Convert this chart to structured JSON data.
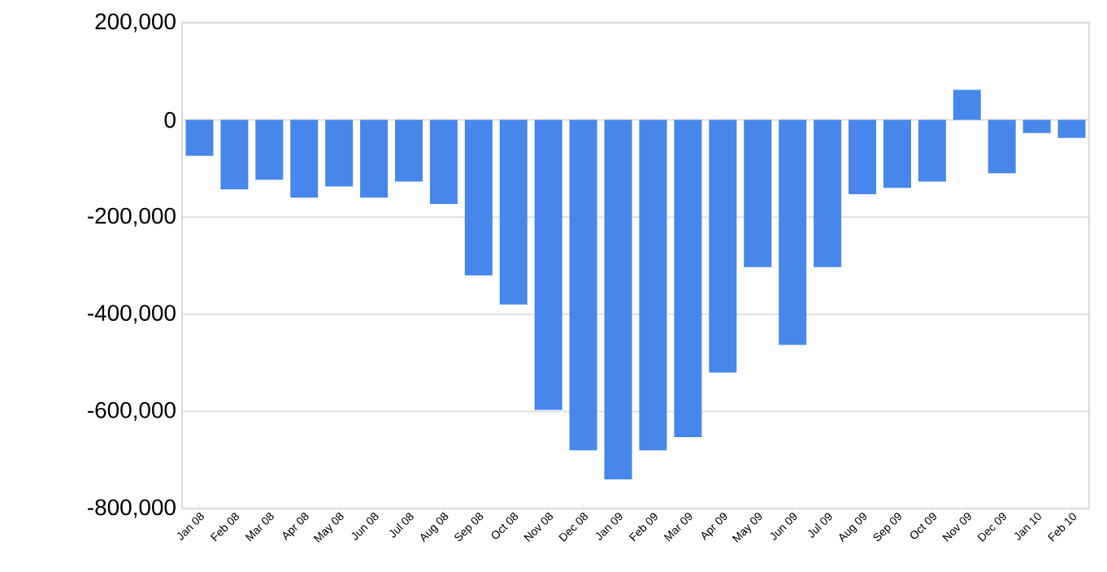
{
  "chart_data": {
    "type": "bar",
    "categories": [
      "Jan 08",
      "Feb 08",
      "Mar 08",
      "Apr 08",
      "May 08",
      "Jun 08",
      "Jul 08",
      "Aug 08",
      "Sep 08",
      "Oct 08",
      "Nov 08",
      "Dec 08",
      "Jan 09",
      "Feb 09",
      "Mar 09",
      "Apr 09",
      "May 09",
      "Jun 09",
      "Jul 09",
      "Aug 09",
      "Sep 09",
      "Oct 09",
      "Nov 09",
      "Dec 09",
      "Jan 10",
      "Feb 10"
    ],
    "values": [
      -74000,
      -143000,
      -123000,
      -160000,
      -137000,
      -160000,
      -127000,
      -173000,
      -320000,
      -380000,
      -597000,
      -680000,
      -740000,
      -680000,
      -653000,
      -520000,
      -303000,
      -463000,
      -303000,
      -153000,
      -140000,
      -127000,
      62000,
      -110000,
      -27000,
      -37000
    ],
    "color": "#4787ec",
    "ylim": [
      -800000,
      200000
    ],
    "yticks": [
      {
        "value": -800000,
        "label": "-800,000"
      },
      {
        "value": -600000,
        "label": "-600,000"
      },
      {
        "value": -400000,
        "label": "-400,000"
      },
      {
        "value": -200000,
        "label": "-200,000"
      },
      0,
      {
        "value": 200000,
        "label": "200,000"
      }
    ],
    "grid": "y"
  }
}
